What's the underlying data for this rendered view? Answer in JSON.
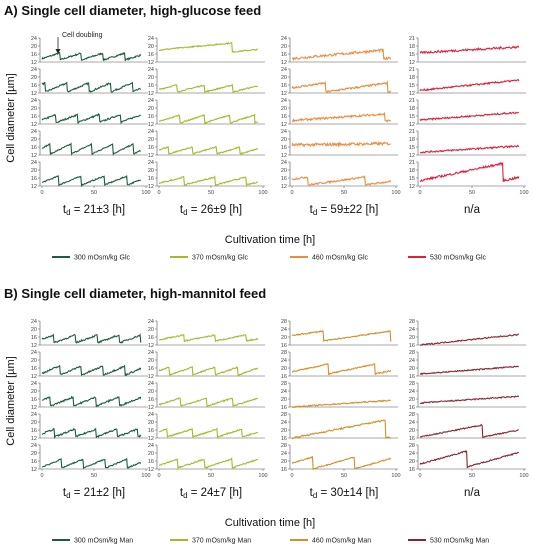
{
  "panels": [
    {
      "title": "A) Single cell diameter, high-glucose feed",
      "ylabel": "Cell diameter [µm]",
      "xlabel": "Cultivation time [h]",
      "annotation": "Cell doubling",
      "columns": [
        {
          "name": "300 mOsm/kg Glc",
          "color": "#1b5e3b",
          "td_prefix": "t",
          "td_sub": "d",
          "td_value": " = 21±3 [h]",
          "yticks": [
            "24",
            "20",
            "16",
            "12"
          ],
          "series": [
            {
              "base": 13.0,
              "amp": 3.5,
              "period": 21,
              "phase": 4,
              "drift": 0,
              "noise": 0.4
            },
            {
              "base": 12.5,
              "amp": 4.5,
              "period": 21,
              "phase": 18,
              "drift": 0,
              "noise": 0.4
            },
            {
              "base": 12.5,
              "amp": 4.0,
              "period": 21,
              "phase": 8,
              "drift": 0.5,
              "noise": 0.4
            },
            {
              "base": 12.5,
              "amp": 5.0,
              "period": 20,
              "phase": 12,
              "drift": 0,
              "noise": 0.3
            },
            {
              "base": 12.5,
              "amp": 4.5,
              "period": 22,
              "phase": 6,
              "drift": 0,
              "noise": 0.3
            }
          ]
        },
        {
          "name": "370 mOsm/kg Glc",
          "color": "#a8b82a",
          "td_prefix": "t",
          "td_sub": "d",
          "td_value": " = 26±9 [h]",
          "yticks": [
            "24",
            "20",
            "16",
            "12"
          ],
          "series": [
            {
              "base": 17.0,
              "amp": 4.5,
              "period": 90,
              "phase": 20,
              "drift": 0,
              "noise": 0.3
            },
            {
              "base": 12.5,
              "amp": 3.5,
              "period": 27,
              "phase": 10,
              "drift": 0,
              "noise": 0.3
            },
            {
              "base": 12.5,
              "amp": 4.0,
              "period": 24,
              "phase": 4,
              "drift": 0,
              "noise": 0.3
            },
            {
              "base": 12.5,
              "amp": 3.5,
              "period": 23,
              "phase": 14,
              "drift": 0,
              "noise": 0.3
            },
            {
              "base": 12.5,
              "amp": 4.0,
              "period": 30,
              "phase": 6,
              "drift": 0,
              "noise": 0.3
            }
          ]
        },
        {
          "name": "460 mOsm/kg Glc",
          "color": "#f08a3c",
          "td_prefix": "t",
          "td_sub": "d",
          "td_value": " = 59±22 [h]",
          "yticks": [
            "24",
            "20",
            "16",
            "12"
          ],
          "series": [
            {
              "base": 13.5,
              "amp": 4.5,
              "period": 92,
              "phase": 4,
              "drift": 0,
              "noise": 0.6
            },
            {
              "base": 12.5,
              "amp": 4.5,
              "period": 60,
              "phase": 28,
              "drift": 0,
              "noise": 0.5
            },
            {
              "base": 13.5,
              "amp": 3.5,
              "period": 95,
              "phase": 6,
              "drift": 0,
              "noise": 0.5
            },
            {
              "base": 17.0,
              "amp": 1.5,
              "period": 200,
              "phase": 0,
              "drift": 0,
              "noise": 0.7
            },
            {
              "base": 12.5,
              "amp": 4.0,
              "period": 55,
              "phase": 40,
              "drift": 0,
              "noise": 0.4
            }
          ]
        },
        {
          "name": "530 mOsm/kg Glc",
          "color": "#e0203a",
          "td_prefix": "",
          "td_sub": "",
          "td_value": "n/a",
          "yticks": [
            "21",
            "18",
            "15",
            "12"
          ],
          "series": [
            {
              "base": 15.5,
              "amp": 4.5,
              "period": 200,
              "phase": 0,
              "drift": 0,
              "noise": 0.4
            },
            {
              "base": 13.0,
              "amp": 8.0,
              "period": 200,
              "phase": 0,
              "drift": 0,
              "noise": 0.3
            },
            {
              "base": 13.5,
              "amp": 6.0,
              "period": 200,
              "phase": 0,
              "drift": 0,
              "noise": 0.3
            },
            {
              "base": 13.0,
              "amp": 5.0,
              "period": 200,
              "phase": 0,
              "drift": 0,
              "noise": 0.3
            },
            {
              "base": 14.0,
              "amp": 6.5,
              "period": 80,
              "phase": 0,
              "drift": 0,
              "noise": 0.4
            }
          ]
        }
      ]
    },
    {
      "title": "B) Single cell diameter, high-mannitol feed",
      "ylabel": "Cell diameter [µm]",
      "xlabel": "Cultivation time [h]",
      "annotation": "",
      "columns": [
        {
          "name": "300 mOsm/kg Man",
          "color": "#1b5e3b",
          "td_prefix": "t",
          "td_sub": "d",
          "td_value": " = 21±2 [h]",
          "yticks": [
            "24",
            "20",
            "16",
            "12"
          ],
          "series": [
            {
              "base": 13.0,
              "amp": 4.0,
              "period": 21,
              "phase": 10,
              "drift": 0,
              "noise": 0.4
            },
            {
              "base": 12.5,
              "amp": 4.5,
              "period": 21,
              "phase": 4,
              "drift": 0,
              "noise": 0.4
            },
            {
              "base": 12.5,
              "amp": 4.5,
              "period": 22,
              "phase": 14,
              "drift": 0,
              "noise": 0.4
            },
            {
              "base": 12.5,
              "amp": 4.0,
              "period": 20,
              "phase": 8,
              "drift": 0,
              "noise": 0.4
            },
            {
              "base": 12.5,
              "amp": 4.5,
              "period": 21,
              "phase": 2,
              "drift": 0,
              "noise": 0.3
            }
          ]
        },
        {
          "name": "370 mOsm/kg Man",
          "color": "#a8b82a",
          "td_prefix": "t",
          "td_sub": "d",
          "td_value": " = 24±7 [h]",
          "yticks": [
            "24",
            "20",
            "16",
            "12"
          ],
          "series": [
            {
              "base": 14.0,
              "amp": 3.0,
              "period": 30,
              "phase": 6,
              "drift": 0,
              "noise": 0.3
            },
            {
              "base": 12.5,
              "amp": 4.0,
              "period": 22,
              "phase": 12,
              "drift": 0,
              "noise": 0.3
            },
            {
              "base": 12.5,
              "amp": 4.0,
              "period": 25,
              "phase": 4,
              "drift": 0,
              "noise": 0.3
            },
            {
              "base": 12.5,
              "amp": 4.0,
              "period": 24,
              "phase": 16,
              "drift": 0,
              "noise": 0.3
            },
            {
              "base": 12.5,
              "amp": 4.5,
              "period": 26,
              "phase": 8,
              "drift": 0,
              "noise": 0.3
            }
          ]
        },
        {
          "name": "460 mOsm/kg Man",
          "color": "#d2902a",
          "td_prefix": "t",
          "td_sub": "d",
          "td_value": " = 30±14 [h]",
          "yticks": [
            "28",
            "24",
            "20",
            "16"
          ],
          "series": [
            {
              "base": 18.0,
              "amp": 5.0,
              "period": 65,
              "phase": 35,
              "drift": 0,
              "noise": 0.3
            },
            {
              "base": 17.0,
              "amp": 5.0,
              "period": 45,
              "phase": 10,
              "drift": 0,
              "noise": 0.3
            },
            {
              "base": 16.0,
              "amp": 7.0,
              "period": 200,
              "phase": 0,
              "drift": 0,
              "noise": 0.3
            },
            {
              "base": 16.0,
              "amp": 9.0,
              "period": 90,
              "phase": 0,
              "drift": 0,
              "noise": 0.4
            },
            {
              "base": 16.0,
              "amp": 6.0,
              "period": 40,
              "phase": 20,
              "drift": 0,
              "noise": 0.3
            }
          ]
        },
        {
          "name": "530 mOsm/kg Man",
          "color": "#8b2330",
          "td_prefix": "",
          "td_sub": "",
          "td_value": "n/a",
          "yticks": [
            "28",
            "24",
            "20",
            "16"
          ],
          "series": [
            {
              "base": 16.0,
              "amp": 11.0,
              "period": 200,
              "phase": 0,
              "drift": 0,
              "noise": 0.3
            },
            {
              "base": 17.0,
              "amp": 8.0,
              "period": 200,
              "phase": 0,
              "drift": 0,
              "noise": 0.3
            },
            {
              "base": 18.0,
              "amp": 7.0,
              "period": 200,
              "phase": 0,
              "drift": 0,
              "noise": 0.3
            },
            {
              "base": 16.5,
              "amp": 6.0,
              "period": 60,
              "phase": 0,
              "drift": 0,
              "noise": 0.3
            },
            {
              "base": 17.0,
              "amp": 8.0,
              "period": 55,
              "phase": 10,
              "drift": 0,
              "noise": 0.3
            }
          ]
        }
      ]
    }
  ],
  "chart_data": [
    {
      "type": "line",
      "title": "A) Single cell diameter, high-glucose feed",
      "xlabel": "Cultivation time [h]",
      "ylabel": "Cell diameter [µm]",
      "xlim": [
        0,
        100
      ],
      "xticks": [
        "0",
        "50",
        "100"
      ],
      "grid": false,
      "legend": "bottom",
      "series": [
        {
          "name": "300 mOsm/kg Glc",
          "doubling_time_h": "21±3",
          "traces": 5,
          "ylim": [
            12,
            24
          ]
        },
        {
          "name": "370 mOsm/kg Glc",
          "doubling_time_h": "26±9",
          "traces": 5,
          "ylim": [
            12,
            24
          ]
        },
        {
          "name": "460 mOsm/kg Glc",
          "doubling_time_h": "59±22",
          "traces": 5,
          "ylim": [
            12,
            24
          ]
        },
        {
          "name": "530 mOsm/kg Glc",
          "doubling_time_h": "n/a",
          "traces": 5,
          "ylim": [
            12,
            21
          ]
        }
      ]
    },
    {
      "type": "line",
      "title": "B) Single cell diameter, high-mannitol feed",
      "xlabel": "Cultivation time [h]",
      "ylabel": "Cell diameter [µm]",
      "xlim": [
        0,
        100
      ],
      "xticks": [
        "0",
        "50",
        "100"
      ],
      "grid": false,
      "legend": "bottom",
      "series": [
        {
          "name": "300 mOsm/kg Man",
          "doubling_time_h": "21±2",
          "traces": 5,
          "ylim": [
            12,
            24
          ]
        },
        {
          "name": "370 mOsm/kg Man",
          "doubling_time_h": "24±7",
          "traces": 5,
          "ylim": [
            12,
            24
          ]
        },
        {
          "name": "460 mOsm/kg Man",
          "doubling_time_h": "30±14",
          "traces": 5,
          "ylim": [
            16,
            28
          ]
        },
        {
          "name": "530 mOsm/kg Man",
          "doubling_time_h": "n/a",
          "traces": 5,
          "ylim": [
            16,
            28
          ]
        }
      ]
    }
  ]
}
